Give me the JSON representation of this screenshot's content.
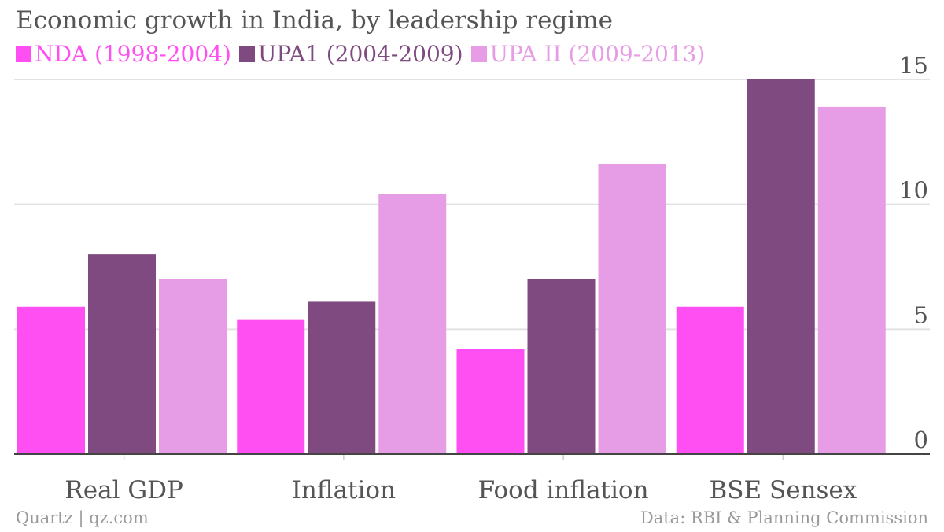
{
  "title": "Economic growth in India, by leadership regime",
  "footer": {
    "source_left": "Quartz | qz.com",
    "source_right": "Data: RBI & Planning Commission"
  },
  "chart_data": {
    "type": "bar",
    "categories": [
      "Real GDP",
      "Inflation",
      "Food inflation",
      "BSE Sensex"
    ],
    "series": [
      {
        "name": "NDA (1998-2004)",
        "color": "#ff4ff2",
        "values": [
          5.9,
          5.4,
          4.2,
          5.9
        ]
      },
      {
        "name": "UPA1 (2004-2009)",
        "color": "#7f4a7f",
        "values": [
          8.0,
          6.1,
          7.0,
          15.0
        ]
      },
      {
        "name": "UPA II (2009-2013)",
        "color": "#e79de6",
        "values": [
          7.0,
          10.4,
          11.6,
          13.9
        ]
      }
    ],
    "ylim": [
      0,
      15
    ],
    "yticks": [
      0,
      5,
      10,
      15
    ],
    "y_axis_side": "right",
    "grid": true,
    "legend_position": "top-left",
    "xlabel": "",
    "ylabel": ""
  }
}
